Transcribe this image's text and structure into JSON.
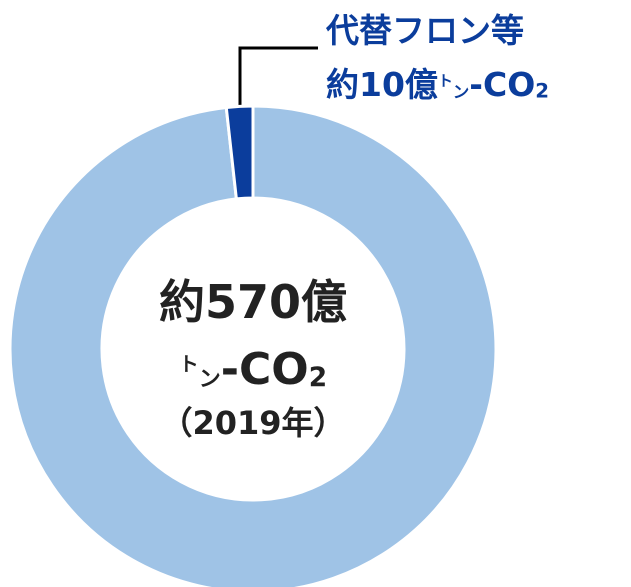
{
  "chart_data": {
    "type": "donut",
    "categories": [
      null,
      "代替フロン等"
    ],
    "values": [
      560,
      10
    ],
    "value_labels": [
      null,
      "約10億"
    ],
    "colors": [
      "#9fc3e6",
      "#0b3d9c"
    ],
    "unit": [
      "ト",
      "ン",
      "-CO",
      "2"
    ],
    "center_label": [
      "約570億",
      "（2019年）"
    ]
  }
}
